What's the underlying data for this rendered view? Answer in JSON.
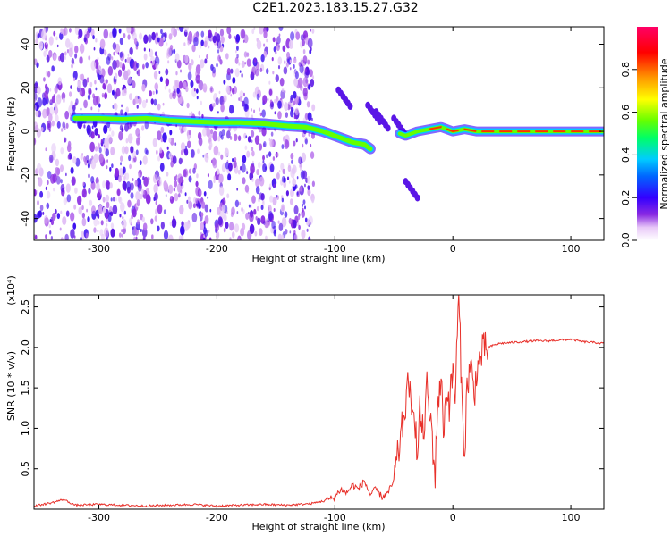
{
  "figure": {
    "title": "C2E1.2023.183.15.27.G32"
  },
  "chart_data": [
    {
      "type": "heatmap",
      "title": "C2E1.2023.183.15.27.G32",
      "xlabel": "Height of straight line (km)",
      "ylabel": "Frequency (Hz)",
      "xlim": [
        -355,
        128
      ],
      "ylim": [
        -50,
        48
      ],
      "xticks": [
        -300,
        -200,
        -100,
        0,
        100
      ],
      "xtick_labels": [
        "-300",
        "-200",
        "-100",
        "0",
        "100"
      ],
      "yticks": [
        -40,
        -20,
        0,
        20,
        40
      ],
      "ytick_labels": [
        "-40",
        "-20",
        "0",
        "20",
        "40"
      ],
      "ridge": {
        "name": "",
        "x": [
          -320,
          -300,
          -280,
          -260,
          -240,
          -220,
          -200,
          -180,
          -160,
          -140,
          -125,
          -110,
          -95,
          -85,
          -75,
          -70
        ],
        "y": [
          6,
          6,
          5.5,
          6,
          5,
          4.5,
          4,
          4,
          3.5,
          2.5,
          2,
          0,
          -3,
          -5,
          -6,
          -8
        ]
      },
      "ridge2": {
        "x": [
          -45,
          -40,
          -30,
          -20,
          -10,
          0,
          10,
          20,
          40,
          60,
          80,
          100,
          128
        ],
        "y": [
          -1,
          -2,
          0,
          1,
          2,
          0,
          1,
          0,
          0,
          0,
          0,
          0,
          0
        ]
      },
      "colorbar": {
        "label": "Normalized spectral amplitude",
        "range": [
          0,
          1
        ],
        "ticks": [
          0.0,
          0.2,
          0.4,
          0.6,
          0.8
        ],
        "tick_labels": [
          "0.0",
          "0.2",
          "0.4",
          "0.6",
          "0.8"
        ],
        "colors": [
          "#ffffff",
          "#e8c8f8",
          "#8a2be2",
          "#3300ff",
          "#0066ff",
          "#00ccff",
          "#00ff66",
          "#66ff00",
          "#ffff00",
          "#ff9900",
          "#ff0000",
          "#ff0066"
        ]
      },
      "grid": false
    },
    {
      "type": "line",
      "xlabel": "Height of straight line (km)",
      "ylabel": "SNR (10 * v/v)",
      "scale_label": "(x10⁴)",
      "xlim": [
        -355,
        128
      ],
      "ylim": [
        0,
        2.65
      ],
      "xticks": [
        -300,
        -200,
        -100,
        0,
        100
      ],
      "xtick_labels": [
        "-300",
        "-200",
        "-100",
        "0",
        "100"
      ],
      "yticks": [
        0.5,
        1.0,
        1.5,
        2.0,
        2.5
      ],
      "ytick_labels": [
        "0.5",
        "1.0",
        "1.5",
        "2.0",
        "2.5"
      ],
      "series": [
        {
          "name": "",
          "color": "#e8302a",
          "x": [
            -355,
            -340,
            -330,
            -320,
            -300,
            -280,
            -260,
            -240,
            -220,
            -200,
            -180,
            -160,
            -140,
            -120,
            -110,
            -100,
            -95,
            -90,
            -85,
            -80,
            -75,
            -70,
            -65,
            -60,
            -55,
            -50,
            -45,
            -40,
            -37,
            -35,
            -33,
            -30,
            -28,
            -25,
            -22,
            -20,
            -18,
            -15,
            -13,
            -10,
            -8,
            -5,
            -3,
            0,
            2,
            5,
            8,
            10,
            12,
            15,
            18,
            20,
            25,
            30,
            35,
            40,
            50,
            60,
            70,
            80,
            90,
            100,
            110,
            120,
            128
          ],
          "y": [
            0.04,
            0.08,
            0.12,
            0.05,
            0.06,
            0.05,
            0.04,
            0.05,
            0.06,
            0.04,
            0.05,
            0.06,
            0.05,
            0.07,
            0.1,
            0.15,
            0.25,
            0.2,
            0.3,
            0.25,
            0.35,
            0.18,
            0.25,
            0.15,
            0.2,
            0.35,
            0.8,
            1.3,
            1.6,
            1.0,
            1.4,
            0.6,
            1.2,
            0.9,
            1.5,
            1.2,
            1.0,
            0.4,
            1.3,
            1.6,
            1.0,
            1.5,
            1.3,
            1.7,
            1.4,
            2.65,
            1.2,
            0.7,
            1.5,
            1.8,
            1.4,
            1.7,
            1.95,
            2.0,
            2.03,
            2.05,
            2.06,
            2.07,
            2.08,
            2.08,
            2.09,
            2.1,
            2.07,
            2.06,
            2.05
          ]
        }
      ],
      "grid": false
    }
  ]
}
